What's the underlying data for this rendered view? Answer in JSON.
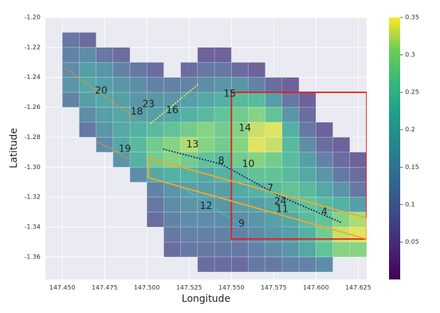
{
  "chart_data": {
    "type": "heatmap",
    "xlabel": "Longitude",
    "ylabel": "Latitude",
    "xlim": [
      147.44,
      147.63
    ],
    "ylim": [
      -1.375,
      -1.2
    ],
    "xticks": [
      {
        "value": 147.45,
        "label": "147.450"
      },
      {
        "value": 147.475,
        "label": "147.475"
      },
      {
        "value": 147.5,
        "label": "147.500"
      },
      {
        "value": 147.525,
        "label": "147.525"
      },
      {
        "value": 147.55,
        "label": "147.550"
      },
      {
        "value": 147.575,
        "label": "147.575"
      },
      {
        "value": 147.6,
        "label": "147.600"
      },
      {
        "value": 147.625,
        "label": "147.625"
      }
    ],
    "yticks": [
      {
        "value": -1.36,
        "label": "-1.36"
      },
      {
        "value": -1.34,
        "label": "-1.34"
      },
      {
        "value": -1.32,
        "label": "-1.32"
      },
      {
        "value": -1.3,
        "label": "-1.30"
      },
      {
        "value": -1.28,
        "label": "-1.28"
      },
      {
        "value": -1.26,
        "label": "-1.26"
      },
      {
        "value": -1.24,
        "label": "-1.24"
      },
      {
        "value": -1.22,
        "label": "-1.22"
      },
      {
        "value": -1.2,
        "label": "-1.20"
      }
    ],
    "grid": true,
    "colormap": "viridis",
    "clim": [
      0,
      0.35
    ],
    "cticks": [
      0.05,
      0.1,
      0.15,
      0.2,
      0.25,
      0.3,
      0.35
    ],
    "xbins": [
      147.44,
      147.45,
      147.46,
      147.47,
      147.48,
      147.49,
      147.5,
      147.51,
      147.52,
      147.53,
      147.54,
      147.55,
      147.56,
      147.57,
      147.58,
      147.59,
      147.6,
      147.61,
      147.62,
      147.63
    ],
    "ybins": [
      -1.21,
      -1.22,
      -1.23,
      -1.24,
      -1.25,
      -1.26,
      -1.27,
      -1.28,
      -1.29,
      -1.3,
      -1.31,
      -1.32,
      -1.33,
      -1.34,
      -1.35,
      -1.36,
      -1.37
    ],
    "values": [
      [
        null,
        0.1,
        0.08,
        null,
        null,
        null,
        null,
        null,
        null,
        null,
        null,
        null,
        null,
        null,
        null,
        null,
        null,
        null,
        null
      ],
      [
        null,
        0.12,
        0.14,
        0.1,
        0.08,
        null,
        null,
        null,
        null,
        0.06,
        0.06,
        null,
        null,
        null,
        null,
        null,
        null,
        null,
        null
      ],
      [
        null,
        0.14,
        0.18,
        0.16,
        0.12,
        0.1,
        0.08,
        null,
        0.08,
        0.1,
        0.1,
        0.08,
        0.06,
        null,
        null,
        null,
        null,
        null,
        null
      ],
      [
        null,
        0.16,
        0.2,
        0.18,
        0.16,
        0.14,
        0.12,
        0.12,
        0.12,
        0.14,
        0.16,
        0.16,
        0.12,
        0.08,
        0.06,
        null,
        null,
        null,
        null
      ],
      [
        null,
        0.12,
        0.18,
        0.2,
        0.18,
        0.16,
        0.16,
        0.16,
        0.18,
        0.2,
        0.22,
        0.24,
        0.24,
        0.18,
        0.1,
        0.06,
        null,
        null,
        null
      ],
      [
        null,
        null,
        0.14,
        0.18,
        0.2,
        0.18,
        0.18,
        0.2,
        0.22,
        0.24,
        0.26,
        0.28,
        0.3,
        0.26,
        0.16,
        0.08,
        null,
        null,
        null
      ],
      [
        null,
        null,
        0.1,
        0.16,
        0.2,
        0.22,
        0.24,
        0.26,
        0.28,
        0.3,
        0.28,
        0.3,
        0.33,
        0.34,
        0.22,
        0.1,
        0.06,
        null,
        null
      ],
      [
        null,
        null,
        null,
        0.14,
        0.2,
        0.24,
        0.28,
        0.3,
        0.32,
        0.3,
        0.28,
        0.3,
        0.34,
        0.33,
        0.24,
        0.14,
        0.08,
        0.06,
        null
      ],
      [
        null,
        null,
        null,
        null,
        0.16,
        0.22,
        0.28,
        0.3,
        0.28,
        0.26,
        0.24,
        0.28,
        0.3,
        0.28,
        0.24,
        0.18,
        0.12,
        0.08,
        0.06
      ],
      [
        null,
        null,
        null,
        null,
        null,
        0.14,
        0.2,
        0.22,
        0.22,
        0.2,
        0.22,
        0.24,
        0.26,
        0.26,
        0.24,
        0.2,
        0.16,
        0.1,
        0.08
      ],
      [
        null,
        null,
        null,
        null,
        null,
        null,
        0.12,
        0.16,
        0.18,
        0.18,
        0.18,
        0.2,
        0.22,
        0.24,
        0.26,
        0.24,
        0.2,
        0.16,
        0.1
      ],
      [
        null,
        null,
        null,
        null,
        null,
        null,
        0.1,
        0.14,
        0.16,
        0.16,
        0.16,
        0.18,
        0.18,
        0.2,
        0.24,
        0.26,
        0.24,
        0.22,
        0.18
      ],
      [
        null,
        null,
        null,
        null,
        null,
        null,
        0.08,
        0.12,
        0.14,
        0.14,
        0.14,
        0.14,
        0.16,
        0.18,
        0.2,
        0.24,
        0.26,
        0.3,
        0.32
      ],
      [
        null,
        null,
        null,
        null,
        null,
        null,
        null,
        0.1,
        0.12,
        0.12,
        0.12,
        0.12,
        0.14,
        0.16,
        0.18,
        0.22,
        0.28,
        0.33,
        0.34
      ],
      [
        null,
        null,
        null,
        null,
        null,
        null,
        null,
        0.08,
        0.1,
        0.1,
        0.1,
        0.1,
        0.12,
        0.14,
        0.16,
        0.2,
        0.26,
        0.3,
        0.3
      ],
      [
        null,
        null,
        null,
        null,
        null,
        null,
        null,
        null,
        null,
        0.08,
        0.08,
        0.08,
        0.1,
        0.1,
        0.12,
        0.12,
        0.14,
        null,
        null
      ]
    ],
    "tracks": [
      {
        "color": "#1a2a80",
        "x": [
          147.51,
          147.544,
          147.578,
          147.615
        ],
        "y": [
          -1.288,
          -1.298,
          -1.319,
          -1.337
        ]
      },
      {
        "color": "#3ec8e0",
        "x": [
          147.52,
          147.556
        ],
        "y": [
          -1.313,
          -1.339
        ]
      },
      {
        "color": "#4a90e0",
        "x": [
          147.521,
          147.587
        ],
        "y": [
          -1.336,
          -1.341
        ]
      },
      {
        "color": "#e09040",
        "x": [
          147.452,
          147.495
        ],
        "y": [
          -1.234,
          -1.269
        ]
      },
      {
        "color": "#e8e860",
        "x": [
          147.53,
          147.502
        ],
        "y": [
          -1.245,
          -1.271
        ]
      },
      {
        "color": "#e09040",
        "x": [
          147.471,
          147.49
        ],
        "y": [
          -1.283,
          -1.295
        ]
      }
    ],
    "shapes": [
      {
        "kind": "rect",
        "color": "#e02020",
        "x": [
          147.55,
          147.63
        ],
        "y": [
          -1.348,
          -1.25
        ]
      },
      {
        "kind": "polygon",
        "color": "#f0a830",
        "x": [
          147.501,
          147.63,
          147.63,
          147.501
        ],
        "y": [
          -1.294,
          -1.334,
          -1.348,
          -1.307
        ]
      }
    ],
    "annotations": [
      {
        "text": "20",
        "x": 147.473,
        "y": -1.249
      },
      {
        "text": "23",
        "x": 147.501,
        "y": -1.258
      },
      {
        "text": "18",
        "x": 147.494,
        "y": -1.263
      },
      {
        "text": "16",
        "x": 147.515,
        "y": -1.262
      },
      {
        "text": "15",
        "x": 147.549,
        "y": -1.251
      },
      {
        "text": "14",
        "x": 147.558,
        "y": -1.274
      },
      {
        "text": "19",
        "x": 147.487,
        "y": -1.288
      },
      {
        "text": "13",
        "x": 147.527,
        "y": -1.285
      },
      {
        "text": "8",
        "x": 147.544,
        "y": -1.296
      },
      {
        "text": "10",
        "x": 147.56,
        "y": -1.298
      },
      {
        "text": "7",
        "x": 147.573,
        "y": -1.314
      },
      {
        "text": "24",
        "x": 147.579,
        "y": -1.323
      },
      {
        "text": "11",
        "x": 147.58,
        "y": -1.328
      },
      {
        "text": "4",
        "x": 147.605,
        "y": -1.33
      },
      {
        "text": "12",
        "x": 147.535,
        "y": -1.326
      },
      {
        "text": "9",
        "x": 147.556,
        "y": -1.338
      }
    ]
  }
}
